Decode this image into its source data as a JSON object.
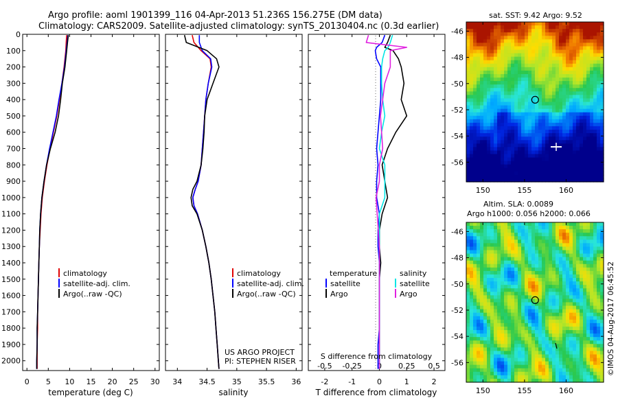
{
  "header": {
    "title_line1": "Argo profile: aoml 1901399_116 04-Apr-2013 51.236S 156.275E (DM data)",
    "title_line2": "Climatology: CARS2009. Satellite-adjusted climatology: synTS_20130404.nc (0.3d earlier)"
  },
  "colors": {
    "climatology": "#e00000",
    "satellite": "#0000ff",
    "argo": "#000000",
    "salinity_satellite": "#00e5e5",
    "salinity_argo": "#e020e0"
  },
  "chart_data": [
    {
      "type": "line",
      "xlabel": "temperature (deg C)",
      "ylabel": "",
      "xlim": [
        -1,
        31
      ],
      "ylim": [
        2060,
        0
      ],
      "xticks": [
        0,
        5,
        10,
        15,
        20,
        25,
        30
      ],
      "yticks": [
        0,
        100,
        200,
        300,
        400,
        500,
        600,
        700,
        800,
        900,
        1000,
        1100,
        1200,
        1300,
        1400,
        1500,
        1600,
        1700,
        1800,
        1900,
        2000
      ],
      "legend": {
        "position": "bottom-right",
        "entries": [
          "climatology",
          "satellite-adj. clim.",
          "Argo(..raw -QC)"
        ]
      },
      "depth": [
        5,
        50,
        100,
        200,
        300,
        400,
        500,
        600,
        700,
        800,
        900,
        1000,
        1100,
        1200,
        1300,
        1400,
        1500,
        1600,
        1700,
        1800,
        1900,
        2000,
        2050
      ],
      "series": [
        {
          "name": "climatology",
          "values": [
            9.3,
            9.2,
            9.1,
            8.7,
            8.2,
            7.6,
            7.0,
            6.2,
            5.4,
            4.7,
            4.1,
            3.6,
            3.3,
            3.1,
            2.9,
            2.8,
            2.7,
            2.6,
            2.5,
            2.5,
            2.4,
            2.4,
            2.4
          ]
        },
        {
          "name": "satellite-adj. clim.",
          "values": [
            9.6,
            9.4,
            9.2,
            8.8,
            8.2,
            7.5,
            6.9,
            6.1,
            5.3,
            4.6,
            4.0,
            3.5,
            3.2,
            3.0,
            2.9,
            2.8,
            2.7,
            2.6,
            2.5,
            2.4,
            2.4,
            2.3,
            2.3
          ]
        },
        {
          "name": "Argo(..raw -QC)",
          "values": [
            9.7,
            9.5,
            9.3,
            8.9,
            8.3,
            7.9,
            7.4,
            6.6,
            5.5,
            4.6,
            4.0,
            3.5,
            3.2,
            3.0,
            2.9,
            2.8,
            2.7,
            2.6,
            2.5,
            2.4,
            2.4,
            2.3,
            2.3
          ]
        }
      ]
    },
    {
      "type": "line",
      "xlabel": "salinity",
      "xlim": [
        33.8,
        36.1
      ],
      "ylim": [
        2060,
        0
      ],
      "xticks": [
        34,
        34.5,
        35,
        35.5,
        36
      ],
      "legend": {
        "position": "bottom-right",
        "entries": [
          "climatology",
          "satellite-adj. clim.",
          "Argo(..raw -QC)"
        ]
      },
      "annotation": [
        "US ARGO PROJECT",
        "PI: STEPHEN RISER"
      ],
      "depth": [
        5,
        50,
        100,
        150,
        200,
        300,
        400,
        500,
        600,
        700,
        800,
        900,
        950,
        1000,
        1050,
        1100,
        1200,
        1300,
        1400,
        1500,
        1600,
        1700,
        1800,
        1900,
        2000,
        2050
      ],
      "series": [
        {
          "name": "climatology",
          "values": [
            34.25,
            34.28,
            34.4,
            34.55,
            34.57,
            34.52,
            34.48,
            34.46,
            34.44,
            34.42,
            34.4,
            34.35,
            34.3,
            34.26,
            34.28,
            34.34,
            34.42,
            34.48,
            34.53,
            34.57,
            34.6,
            34.63,
            34.65,
            34.67,
            34.69,
            34.7
          ]
        },
        {
          "name": "satellite-adj. clim.",
          "values": [
            34.37,
            34.37,
            34.42,
            34.56,
            34.58,
            34.52,
            34.48,
            34.46,
            34.44,
            34.42,
            34.4,
            34.35,
            34.3,
            34.26,
            34.28,
            34.34,
            34.42,
            34.48,
            34.53,
            34.57,
            34.6,
            34.63,
            34.65,
            34.67,
            34.69,
            34.7
          ]
        },
        {
          "name": "Argo(..raw -QC)",
          "values": [
            34.12,
            34.15,
            34.5,
            34.66,
            34.7,
            34.6,
            34.5,
            34.46,
            34.45,
            34.43,
            34.4,
            34.33,
            34.26,
            34.23,
            34.25,
            34.33,
            34.42,
            34.48,
            34.53,
            34.57,
            34.6,
            34.63,
            34.65,
            34.67,
            34.69,
            34.7
          ]
        }
      ]
    },
    {
      "type": "line",
      "xlabel_top": "S difference from climatology",
      "xlabel": "T difference from climatology",
      "xlim": [
        -2.6,
        2.4
      ],
      "x2lim": [
        -0.65,
        0.6
      ],
      "ylim": [
        2060,
        0
      ],
      "xticks": [
        -2,
        -1,
        0,
        1,
        2
      ],
      "x2ticks": [
        -0.5,
        -0.25,
        0,
        0.25,
        0.5
      ],
      "legend": {
        "position": "bottom",
        "entries": [
          "temperature",
          "satellite",
          "Argo",
          "salinity",
          "satellite",
          "Argo"
        ]
      },
      "depth": [
        5,
        50,
        80,
        100,
        150,
        200,
        300,
        400,
        500,
        600,
        700,
        800,
        900,
        1000,
        1100,
        1200,
        1300,
        1400,
        1500,
        1600,
        1700,
        1800,
        1900,
        2000,
        2050
      ],
      "series": [
        {
          "name": "temperature satellite",
          "values": [
            0.2,
            0.1,
            -0.1,
            -0.15,
            -0.1,
            0.05,
            0.05,
            0.05,
            0.0,
            -0.05,
            -0.1,
            -0.05,
            -0.1,
            -0.1,
            0.0,
            -0.05,
            -0.05,
            0.0,
            0.0,
            0.0,
            0.0,
            0.0,
            -0.05,
            -0.05,
            -0.05
          ]
        },
        {
          "name": "temperature Argo",
          "values": [
            0.4,
            0.3,
            0.2,
            0.5,
            0.7,
            0.8,
            0.9,
            0.8,
            1.0,
            0.6,
            0.3,
            0.1,
            0.2,
            0.3,
            0.1,
            0.0,
            0.0,
            0.05,
            0.0,
            0.0,
            0.0,
            0.0,
            0.0,
            0.0,
            0.0
          ]
        },
        {
          "name": "salinity satellite",
          "values": [
            0.12,
            0.1,
            0.08,
            0.05,
            0.03,
            0.02,
            0.02,
            0.03,
            0.05,
            0.02,
            0.0,
            0.05,
            0.05,
            0.05,
            0.0,
            0.0,
            0.0,
            0.0,
            0.0,
            0.0,
            0.0,
            0.0,
            0.0,
            0.0,
            0.0
          ]
        },
        {
          "name": "salinity Argo",
          "values": [
            -0.1,
            -0.12,
            0.25,
            0.1,
            0.1,
            0.1,
            0.05,
            0.03,
            0.01,
            0.02,
            0.03,
            0.0,
            0.0,
            -0.03,
            -0.02,
            -0.01,
            0.0,
            0.0,
            0.0,
            0.0,
            0.0,
            0.0,
            0.0,
            0.0,
            0.0
          ]
        }
      ]
    },
    {
      "type": "heatmap",
      "title": "sat. SST: 9.42  Argo: 9.52",
      "xticks": [
        150,
        155,
        160
      ],
      "yticks": [
        -46,
        -48,
        -50,
        -52,
        -54,
        -56
      ],
      "xlim": [
        148,
        164.5
      ],
      "ylim": [
        -57.5,
        -45.3
      ],
      "marker": {
        "lon": 156.275,
        "lat": -51.236
      }
    },
    {
      "type": "heatmap",
      "title_line1": "Altim. SLA: 0.0089",
      "title_line2": "Argo h1000: 0.056 h2000: 0.066",
      "xticks": [
        150,
        155,
        160
      ],
      "yticks": [
        -46,
        -48,
        -50,
        -52,
        -54,
        -56
      ],
      "xlim": [
        148,
        164.5
      ],
      "ylim": [
        -57.5,
        -45.3
      ],
      "marker": {
        "lon": 156.275,
        "lat": -51.236
      }
    }
  ],
  "footer": {
    "credit": "©IMOS 04-Aug-2017 06:45:52"
  }
}
